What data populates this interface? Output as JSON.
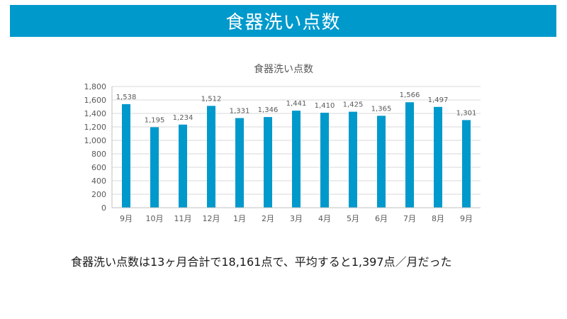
{
  "slide": {
    "title": "食器洗い点数",
    "summary": "食器洗い点数は13ヶ月合計で18,161点で、平均すると1,397点／月だった"
  },
  "colors": {
    "title_bar": "#0099cc",
    "bar": "#0099cc",
    "grid": "#d9d9d9",
    "axis_text": "#595959"
  },
  "chart_data": {
    "type": "bar",
    "title": "食器洗い点数",
    "categories": [
      "9月",
      "10月",
      "11月",
      "12月",
      "1月",
      "2月",
      "3月",
      "4月",
      "5月",
      "6月",
      "7月",
      "8月",
      "9月"
    ],
    "values": [
      1538,
      1195,
      1234,
      1512,
      1331,
      1346,
      1441,
      1410,
      1425,
      1365,
      1566,
      1497,
      1301
    ],
    "value_labels": [
      "1,538",
      "1,195",
      "1,234",
      "1,512",
      "1,331",
      "1,346",
      "1,441",
      "1,410",
      "1,425",
      "1,365",
      "1,566",
      "1,497",
      "1,301"
    ],
    "yticks": [
      "0",
      "200",
      "400",
      "600",
      "800",
      "1,000",
      "1,200",
      "1,400",
      "1,600",
      "1,800"
    ],
    "ylim": [
      0,
      1800
    ],
    "grid": true,
    "legend": "none"
  }
}
